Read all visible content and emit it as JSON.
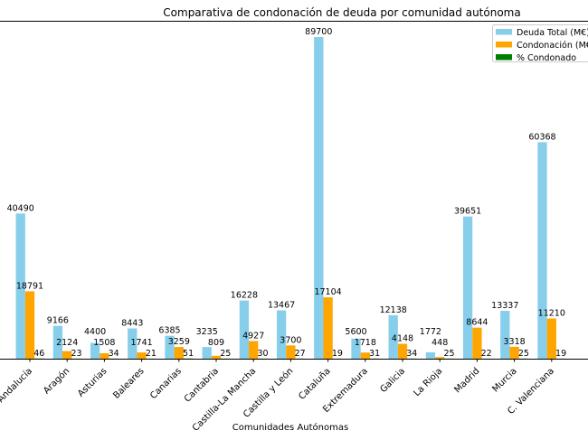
{
  "chart_data": {
    "type": "bar",
    "title": "Comparativa de condonación de deuda por comunidad autónoma",
    "xlabel": "Comunidades Autónomas",
    "ylabel": "",
    "categories": [
      "Andalucía",
      "Aragón",
      "Asturias",
      "Baleares",
      "Canarias",
      "Cantabria",
      "Castilla-La Mancha",
      "Castilla y León",
      "Cataluña",
      "Extremadura",
      "Galicia",
      "La Rioja",
      "Madrid",
      "Murcia",
      "C. Valenciana"
    ],
    "series": [
      {
        "name": "Deuda Total (M€)",
        "color": "#87ceeb",
        "values": [
          40490,
          9166,
          4400,
          8443,
          6385,
          3235,
          16228,
          13467,
          89700,
          5600,
          12138,
          1772,
          39651,
          13337,
          60368
        ]
      },
      {
        "name": "Condonación (M€)",
        "color": "#ffa500",
        "values": [
          18791,
          2124,
          1508,
          1741,
          3259,
          809,
          4927,
          3700,
          17104,
          1718,
          4148,
          448,
          8644,
          3318,
          11210
        ]
      },
      {
        "name": "% Condonado",
        "color": "#008000",
        "values": [
          46,
          23,
          34,
          21,
          51,
          25,
          30,
          27,
          19,
          31,
          34,
          25,
          22,
          25,
          19
        ]
      }
    ],
    "legend_position": "top-right",
    "grid": false
  }
}
